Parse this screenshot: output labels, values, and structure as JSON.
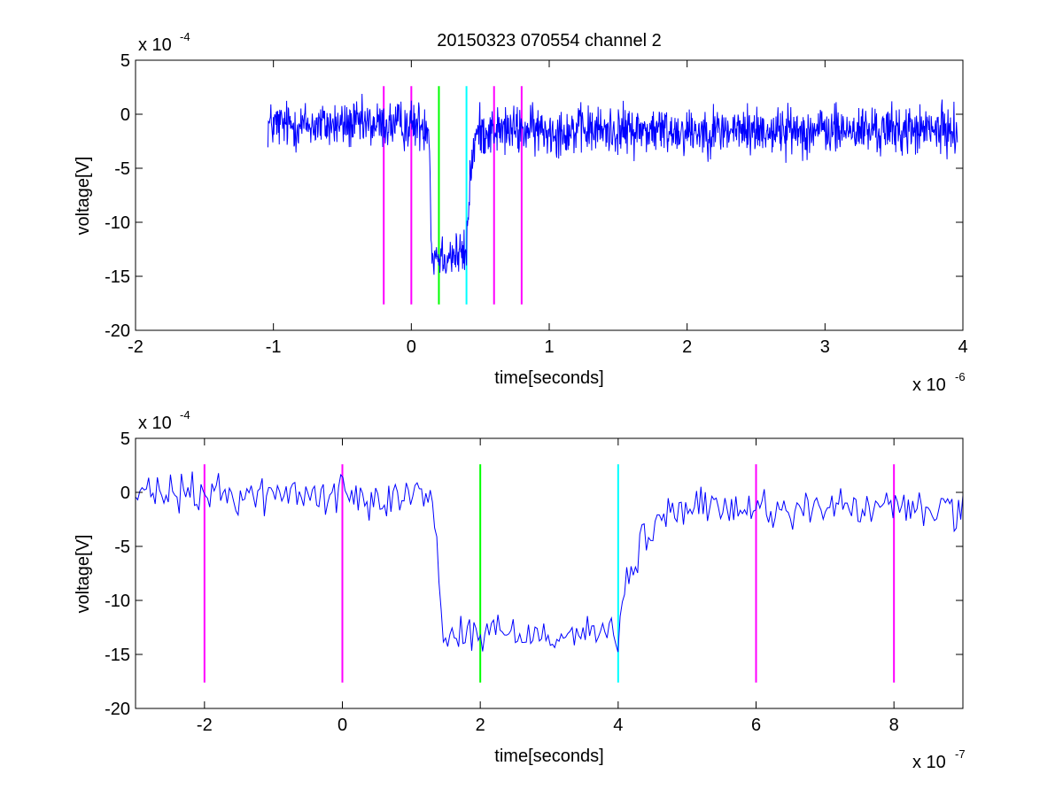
{
  "chart_data": [
    {
      "type": "line",
      "title": "20150323 070554 channel 2",
      "xlabel": "time[seconds]",
      "ylabel": "voltage[V]",
      "x_multiplier_label": "x 10",
      "x_multiplier_exp": "-6",
      "y_multiplier_label": "x 10",
      "y_multiplier_exp": "-4",
      "xlim": [
        -2,
        4
      ],
      "ylim": [
        -20,
        5
      ],
      "x_ticks": [
        -2,
        -1,
        0,
        1,
        2,
        3,
        4
      ],
      "x_tick_labels": [
        "-2",
        "-1",
        "0",
        "1",
        "2",
        "3",
        "4"
      ],
      "y_ticks": [
        -20,
        -15,
        -10,
        -5,
        0,
        5
      ],
      "y_tick_labels": [
        "-20",
        "-15",
        "-10",
        "-5",
        "0",
        "5"
      ],
      "grid": false,
      "signal": {
        "color": "#0000ff",
        "x_start": -1.04,
        "x_end": 3.96,
        "n_points": 1400,
        "baseline": -1,
        "noise_amplitude": 1.6,
        "step_down_x": 0.13,
        "step_down_level": -13,
        "step_up_x": 0.4,
        "recovery_level": -1.5
      },
      "markers": [
        {
          "x": -0.2,
          "color": "#ff00ff",
          "y_range": [
            -17.6,
            2.6
          ]
        },
        {
          "x": 0.0,
          "color": "#ff00ff",
          "y_range": [
            -17.6,
            2.6
          ]
        },
        {
          "x": 0.2,
          "color": "#00ff00",
          "y_range": [
            -17.6,
            2.6
          ]
        },
        {
          "x": 0.4,
          "color": "#00ffff",
          "y_range": [
            -17.6,
            2.6
          ]
        },
        {
          "x": 0.6,
          "color": "#ff00ff",
          "y_range": [
            -17.6,
            2.6
          ]
        },
        {
          "x": 0.8,
          "color": "#ff00ff",
          "y_range": [
            -17.6,
            2.6
          ]
        }
      ]
    },
    {
      "type": "line",
      "title": "",
      "xlabel": "time[seconds]",
      "ylabel": "voltage[V]",
      "x_multiplier_label": "x 10",
      "x_multiplier_exp": "-7",
      "y_multiplier_label": "x 10",
      "y_multiplier_exp": "-4",
      "xlim": [
        -3,
        9
      ],
      "ylim": [
        -20,
        5
      ],
      "x_ticks": [
        -2,
        0,
        2,
        4,
        6,
        8
      ],
      "x_tick_labels": [
        "-2",
        "0",
        "2",
        "4",
        "6",
        "8"
      ],
      "y_ticks": [
        -20,
        -15,
        -10,
        -5,
        0,
        5
      ],
      "y_tick_labels": [
        "-20",
        "-15",
        "-10",
        "-5",
        "0",
        "5"
      ],
      "grid": false,
      "signal": {
        "color": "#0000ff",
        "x_start": -3.0,
        "x_end": 9.0,
        "n_points": 380,
        "baseline": -0.2,
        "noise_amplitude": 1.3,
        "step_down_x": 1.3,
        "step_down_level": -13,
        "step_up_x": 4.0,
        "recovery_level": -1.5
      },
      "markers": [
        {
          "x": -2,
          "color": "#ff00ff",
          "y_range": [
            -17.6,
            2.6
          ]
        },
        {
          "x": 0,
          "color": "#ff00ff",
          "y_range": [
            -17.6,
            2.6
          ]
        },
        {
          "x": 2,
          "color": "#00ff00",
          "y_range": [
            -17.6,
            2.6
          ]
        },
        {
          "x": 4,
          "color": "#00ffff",
          "y_range": [
            -17.6,
            2.6
          ]
        },
        {
          "x": 6,
          "color": "#ff00ff",
          "y_range": [
            -17.6,
            2.6
          ]
        },
        {
          "x": 8,
          "color": "#ff00ff",
          "y_range": [
            -17.6,
            2.6
          ]
        }
      ]
    }
  ]
}
